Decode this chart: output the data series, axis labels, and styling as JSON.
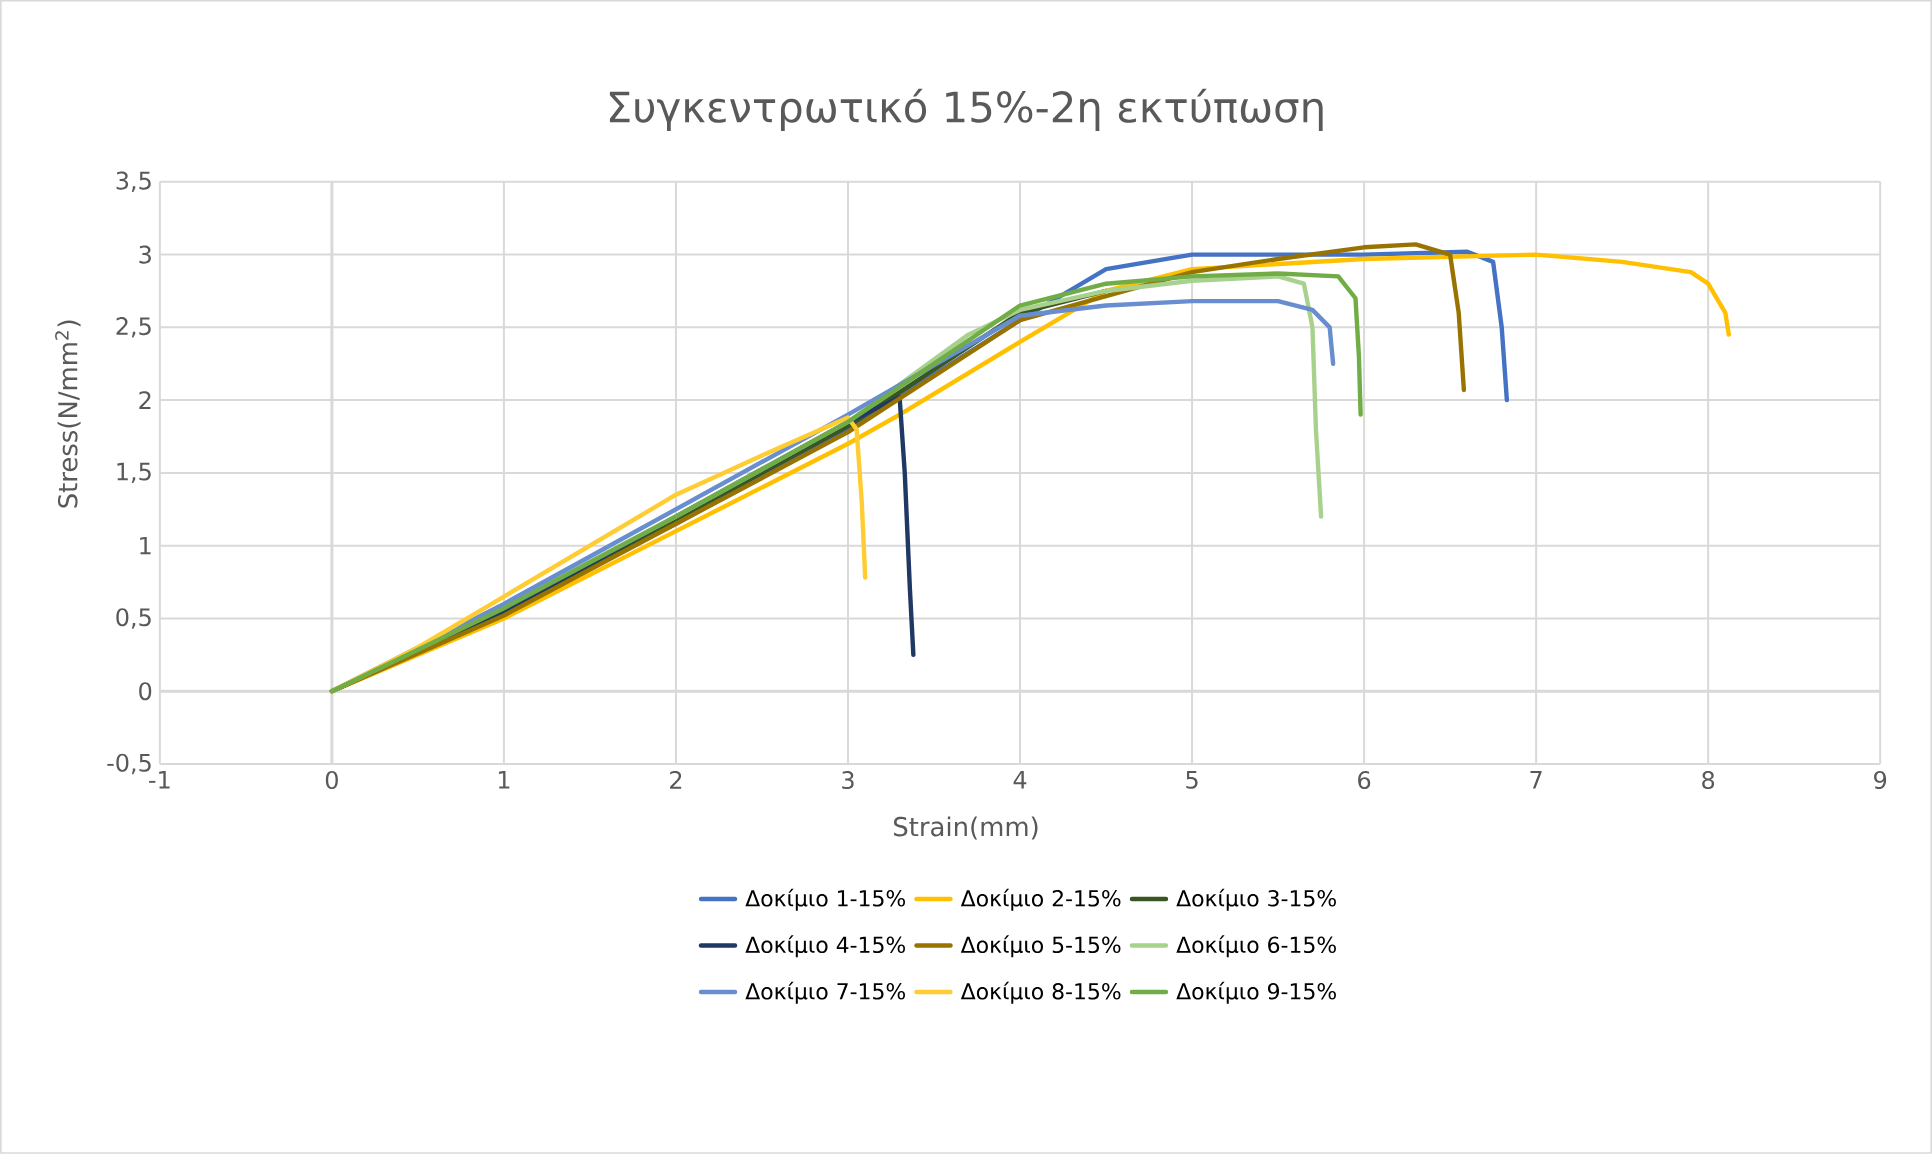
{
  "chart_data": {
    "type": "line",
    "title": "Συγκεντρωτικό 15%-2η εκτύπωση",
    "xlabel": "Strain(mm)",
    "ylabel": "Stress(N/mm$^{2}$)",
    "xlim": [
      -1,
      9
    ],
    "xticks": [
      -1,
      0,
      1,
      2,
      3,
      4,
      5,
      6,
      7,
      8,
      9
    ],
    "ylim": [
      -0.5,
      3.5
    ],
    "yticks": [
      {
        "value": -0.5,
        "label": "-0,5"
      },
      0,
      {
        "value": 0.5,
        "label": "0,5"
      },
      1,
      {
        "value": 1.5,
        "label": "1,5"
      },
      2,
      {
        "value": 2.5,
        "label": "2,5"
      },
      3,
      {
        "value": 3.5,
        "label": "3,5"
      }
    ],
    "grid": true,
    "legend": "bottom",
    "marker": "none",
    "line_style": "solid",
    "series": [
      {
        "name": "Δοκίμιο 1-15%",
        "color": "#4472c4",
        "x": [
          0,
          1,
          2,
          3,
          4,
          4.5,
          5,
          6,
          6.6,
          6.75,
          6.8,
          6.83
        ],
        "values": [
          0,
          0.55,
          1.15,
          1.8,
          2.55,
          2.9,
          3.0,
          3.0,
          3.02,
          2.95,
          2.5,
          2.0
        ]
      },
      {
        "name": "Δοκίμιο 2-15%",
        "color": "#ffc000",
        "x": [
          0,
          1,
          2,
          3,
          3.3,
          4,
          4.5,
          5,
          6,
          7,
          7.5,
          7.9,
          8.0,
          8.1,
          8.12
        ],
        "values": [
          0,
          0.5,
          1.1,
          1.7,
          1.9,
          2.4,
          2.75,
          2.9,
          2.97,
          3.0,
          2.95,
          2.88,
          2.8,
          2.6,
          2.45
        ]
      },
      {
        "name": "Δοκίμιο 3-15%",
        "color": "#375623",
        "x": [
          0,
          1,
          2,
          3,
          4,
          4.5
        ],
        "values": [
          0,
          0.55,
          1.18,
          1.82,
          2.6,
          2.75
        ]
      },
      {
        "name": "Δοκίμιο 4-15%",
        "color": "#203864",
        "x": [
          0,
          1,
          2,
          3,
          3.3,
          3.33,
          3.36,
          3.38
        ],
        "values": [
          0,
          0.55,
          1.2,
          1.85,
          2.02,
          1.5,
          0.7,
          0.25
        ]
      },
      {
        "name": "Δοκίμιο 5-15%",
        "color": "#997300",
        "x": [
          0,
          1,
          2,
          3,
          4,
          5,
          5.5,
          6,
          6.3,
          6.5,
          6.55,
          6.58
        ],
        "values": [
          0,
          0.52,
          1.15,
          1.78,
          2.55,
          2.88,
          2.97,
          3.05,
          3.07,
          3.0,
          2.6,
          2.07
        ]
      },
      {
        "name": "Δοκίμιο 6-15%",
        "color": "#a9d18e",
        "x": [
          0,
          1,
          2,
          3,
          3.7,
          4,
          4.5,
          5,
          5.5,
          5.65,
          5.7,
          5.72,
          5.75
        ],
        "values": [
          0,
          0.58,
          1.2,
          1.85,
          2.45,
          2.62,
          2.75,
          2.82,
          2.85,
          2.8,
          2.5,
          1.8,
          1.2
        ]
      },
      {
        "name": "Δοκίμιο 7-15%",
        "color": "#698ed0",
        "x": [
          0,
          1,
          2,
          3,
          4,
          4.5,
          5,
          5.5,
          5.7,
          5.8,
          5.82
        ],
        "values": [
          0,
          0.6,
          1.25,
          1.9,
          2.58,
          2.65,
          2.68,
          2.68,
          2.62,
          2.5,
          2.25
        ]
      },
      {
        "name": "Δοκίμιο 8-15%",
        "color": "#ffcd33",
        "x": [
          0,
          0.5,
          1,
          2,
          2.5,
          3,
          3.05,
          3.08,
          3.1
        ],
        "values": [
          0,
          0.3,
          0.65,
          1.35,
          1.62,
          1.88,
          1.8,
          1.3,
          0.78
        ]
      },
      {
        "name": "Δοκίμιο 9-15%",
        "color": "#70ad47",
        "x": [
          0,
          1,
          2,
          3,
          4,
          4.5,
          5,
          5.5,
          5.85,
          5.95,
          5.97,
          5.98
        ],
        "values": [
          0,
          0.57,
          1.2,
          1.85,
          2.65,
          2.8,
          2.85,
          2.87,
          2.85,
          2.7,
          2.3,
          1.9
        ]
      }
    ]
  }
}
